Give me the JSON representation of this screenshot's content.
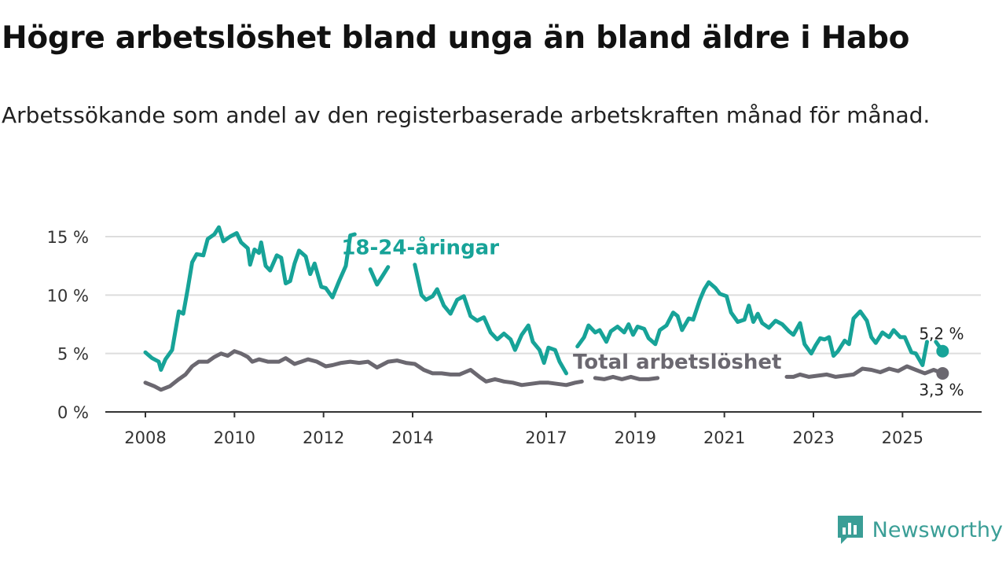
{
  "header": {
    "title": "Högre arbetslöshet bland unga än bland äldre i Habo",
    "subtitle": "Arbetssökande som andel av den registerbaserade arbetskraften månad för månad."
  },
  "brand": {
    "name": "Newsworthy",
    "icon": "bar-chart-icon",
    "color": "#3a9e96"
  },
  "chart_data": {
    "type": "line",
    "title": "Högre arbetslöshet bland unga än bland äldre i Habo",
    "xlabel": "",
    "ylabel": "",
    "xlim": [
      2008.0,
      2026.0
    ],
    "ylim": [
      0,
      16
    ],
    "grid": true,
    "x_ticks": [
      {
        "value": 2008,
        "label": "2008"
      },
      {
        "value": 2010,
        "label": "2010"
      },
      {
        "value": 2012,
        "label": "2012"
      },
      {
        "value": 2014,
        "label": "2014"
      },
      {
        "value": 2017,
        "label": "2017"
      },
      {
        "value": 2019,
        "label": "2019"
      },
      {
        "value": 2021,
        "label": "2021"
      },
      {
        "value": 2023,
        "label": "2023"
      },
      {
        "value": 2025,
        "label": "2025"
      }
    ],
    "y_ticks": [
      {
        "value": 0,
        "label": "0 %"
      },
      {
        "value": 5,
        "label": "5 %"
      },
      {
        "value": 10,
        "label": "10 %"
      },
      {
        "value": 15,
        "label": "15 %"
      }
    ],
    "series": [
      {
        "name": "18-24-åringar",
        "color": "#17a398",
        "end_label": "5,2 %",
        "points": [
          [
            2008.0,
            5.1
          ],
          [
            2008.15,
            4.6
          ],
          [
            2008.3,
            4.3
          ],
          [
            2008.35,
            3.6
          ],
          [
            2008.45,
            4.5
          ],
          [
            2008.6,
            5.3
          ],
          [
            2008.75,
            8.6
          ],
          [
            2008.85,
            8.4
          ],
          [
            2008.95,
            10.5
          ],
          [
            2009.05,
            12.8
          ],
          [
            2009.15,
            13.5
          ],
          [
            2009.3,
            13.4
          ],
          [
            2009.4,
            14.8
          ],
          [
            2009.55,
            15.2
          ],
          [
            2009.65,
            15.8
          ],
          [
            2009.75,
            14.6
          ],
          [
            2009.9,
            15.0
          ],
          [
            2010.05,
            15.3
          ],
          [
            2010.15,
            14.5
          ],
          [
            2010.3,
            14.0
          ],
          [
            2010.35,
            12.6
          ],
          [
            2010.45,
            13.9
          ],
          [
            2010.55,
            13.6
          ],
          [
            2010.6,
            14.5
          ],
          [
            2010.7,
            12.5
          ],
          [
            2010.8,
            12.1
          ],
          [
            2010.95,
            13.4
          ],
          [
            2011.05,
            13.2
          ],
          [
            2011.15,
            11.0
          ],
          [
            2011.25,
            11.2
          ],
          [
            2011.35,
            12.7
          ],
          [
            2011.45,
            13.8
          ],
          [
            2011.6,
            13.3
          ],
          [
            2011.7,
            11.8
          ],
          [
            2011.8,
            12.7
          ],
          [
            2011.95,
            10.7
          ],
          [
            2012.05,
            10.6
          ],
          [
            2012.2,
            9.8
          ],
          [
            2012.35,
            11.2
          ],
          [
            2012.5,
            12.5
          ],
          [
            2012.6,
            15.1
          ],
          [
            2012.7,
            15.2
          ]
        ]
      },
      {
        "name": "18-24-åringar (del 2)",
        "color": "#17a398",
        "points": [
          [
            2013.05,
            12.2
          ],
          [
            2013.2,
            10.9
          ],
          [
            2013.35,
            11.8
          ],
          [
            2013.45,
            12.4
          ]
        ]
      },
      {
        "name": "18-24-åringar (del 3)",
        "color": "#17a398",
        "points": [
          [
            2014.05,
            12.6
          ],
          [
            2014.2,
            10.0
          ],
          [
            2014.3,
            9.6
          ],
          [
            2014.45,
            9.9
          ],
          [
            2014.55,
            10.5
          ],
          [
            2014.7,
            9.1
          ],
          [
            2014.85,
            8.4
          ],
          [
            2015.0,
            9.6
          ],
          [
            2015.15,
            9.9
          ],
          [
            2015.3,
            8.2
          ],
          [
            2015.45,
            7.8
          ],
          [
            2015.6,
            8.1
          ],
          [
            2015.75,
            6.8
          ],
          [
            2015.9,
            6.2
          ],
          [
            2016.05,
            6.7
          ],
          [
            2016.2,
            6.2
          ],
          [
            2016.3,
            5.3
          ],
          [
            2016.45,
            6.6
          ],
          [
            2016.6,
            7.4
          ],
          [
            2016.7,
            6.0
          ],
          [
            2016.85,
            5.3
          ],
          [
            2016.95,
            4.2
          ],
          [
            2017.05,
            5.5
          ],
          [
            2017.2,
            5.3
          ],
          [
            2017.3,
            4.3
          ],
          [
            2017.45,
            3.3
          ]
        ]
      },
      {
        "name": "18-24-åringar (del 4)",
        "color": "#17a398",
        "points": [
          [
            2017.7,
            5.6
          ],
          [
            2017.85,
            6.4
          ],
          [
            2017.95,
            7.4
          ],
          [
            2018.1,
            6.8
          ],
          [
            2018.2,
            7.0
          ],
          [
            2018.35,
            6.0
          ],
          [
            2018.45,
            6.9
          ],
          [
            2018.6,
            7.3
          ],
          [
            2018.75,
            6.8
          ],
          [
            2018.85,
            7.5
          ],
          [
            2018.95,
            6.6
          ],
          [
            2019.05,
            7.3
          ],
          [
            2019.2,
            7.1
          ],
          [
            2019.3,
            6.3
          ],
          [
            2019.45,
            5.8
          ],
          [
            2019.55,
            7.0
          ],
          [
            2019.7,
            7.4
          ],
          [
            2019.85,
            8.5
          ],
          [
            2019.95,
            8.2
          ],
          [
            2020.05,
            7.0
          ],
          [
            2020.2,
            8.0
          ],
          [
            2020.3,
            7.9
          ],
          [
            2020.45,
            9.6
          ],
          [
            2020.55,
            10.5
          ],
          [
            2020.65,
            11.1
          ],
          [
            2020.8,
            10.6
          ],
          [
            2020.9,
            10.1
          ],
          [
            2021.05,
            9.9
          ],
          [
            2021.15,
            8.5
          ],
          [
            2021.3,
            7.7
          ],
          [
            2021.45,
            7.9
          ],
          [
            2021.55,
            9.1
          ],
          [
            2021.65,
            7.7
          ],
          [
            2021.75,
            8.4
          ],
          [
            2021.85,
            7.6
          ],
          [
            2022.0,
            7.2
          ],
          [
            2022.15,
            7.8
          ],
          [
            2022.3,
            7.5
          ],
          [
            2022.45,
            6.9
          ],
          [
            2022.55,
            6.6
          ],
          [
            2022.7,
            7.6
          ],
          [
            2022.8,
            5.8
          ],
          [
            2022.95,
            5.0
          ],
          [
            2023.05,
            5.7
          ],
          [
            2023.15,
            6.3
          ],
          [
            2023.25,
            6.2
          ],
          [
            2023.35,
            6.4
          ],
          [
            2023.45,
            4.8
          ],
          [
            2023.55,
            5.2
          ],
          [
            2023.7,
            6.1
          ],
          [
            2023.8,
            5.8
          ],
          [
            2023.9,
            8.0
          ],
          [
            2024.05,
            8.6
          ],
          [
            2024.2,
            7.8
          ],
          [
            2024.3,
            6.4
          ],
          [
            2024.4,
            5.9
          ],
          [
            2024.55,
            6.8
          ],
          [
            2024.7,
            6.4
          ],
          [
            2024.8,
            7.0
          ],
          [
            2024.95,
            6.4
          ],
          [
            2025.05,
            6.4
          ],
          [
            2025.2,
            5.1
          ],
          [
            2025.3,
            5.0
          ],
          [
            2025.45,
            4.0
          ],
          [
            2025.55,
            6.0
          ]
        ]
      },
      {
        "name": "18-24-åringar (del 5)",
        "color": "#17a398",
        "points": [
          [
            2025.75,
            6.0
          ],
          [
            2025.9,
            5.2
          ]
        ]
      },
      {
        "name": "Total arbetslöshet",
        "color": "#6b6870",
        "end_label": "3,3 %",
        "points": [
          [
            2008.0,
            2.5
          ],
          [
            2008.2,
            2.2
          ],
          [
            2008.35,
            1.9
          ],
          [
            2008.55,
            2.2
          ],
          [
            2008.75,
            2.8
          ],
          [
            2008.9,
            3.2
          ],
          [
            2009.05,
            3.9
          ],
          [
            2009.2,
            4.3
          ],
          [
            2009.4,
            4.3
          ],
          [
            2009.55,
            4.7
          ],
          [
            2009.7,
            5.0
          ],
          [
            2009.85,
            4.8
          ],
          [
            2010.0,
            5.2
          ],
          [
            2010.15,
            5.0
          ],
          [
            2010.3,
            4.7
          ],
          [
            2010.4,
            4.3
          ],
          [
            2010.55,
            4.5
          ],
          [
            2010.75,
            4.3
          ],
          [
            2011.0,
            4.3
          ],
          [
            2011.15,
            4.6
          ],
          [
            2011.35,
            4.1
          ],
          [
            2011.5,
            4.3
          ],
          [
            2011.65,
            4.5
          ],
          [
            2011.85,
            4.3
          ],
          [
            2012.05,
            3.9
          ],
          [
            2012.2,
            4.0
          ],
          [
            2012.4,
            4.2
          ],
          [
            2012.6,
            4.3
          ],
          [
            2012.8,
            4.2
          ],
          [
            2013.0,
            4.3
          ],
          [
            2013.2,
            3.8
          ],
          [
            2013.45,
            4.3
          ],
          [
            2013.65,
            4.4
          ],
          [
            2013.85,
            4.2
          ],
          [
            2014.05,
            4.1
          ],
          [
            2014.25,
            3.6
          ],
          [
            2014.45,
            3.3
          ],
          [
            2014.65,
            3.3
          ],
          [
            2014.85,
            3.2
          ],
          [
            2015.05,
            3.2
          ],
          [
            2015.3,
            3.6
          ],
          [
            2015.5,
            3.0
          ],
          [
            2015.65,
            2.6
          ],
          [
            2015.85,
            2.8
          ],
          [
            2016.05,
            2.6
          ],
          [
            2016.25,
            2.5
          ],
          [
            2016.45,
            2.3
          ],
          [
            2016.65,
            2.4
          ],
          [
            2016.85,
            2.5
          ],
          [
            2017.05,
            2.5
          ],
          [
            2017.25,
            2.4
          ],
          [
            2017.45,
            2.3
          ],
          [
            2017.65,
            2.5
          ],
          [
            2017.8,
            2.6
          ]
        ]
      },
      {
        "name": "Total arbetslöshet (del 2)",
        "color": "#6b6870",
        "points": [
          [
            2018.1,
            2.9
          ],
          [
            2018.3,
            2.8
          ],
          [
            2018.5,
            3.0
          ],
          [
            2018.7,
            2.8
          ],
          [
            2018.9,
            3.0
          ],
          [
            2019.1,
            2.8
          ],
          [
            2019.3,
            2.8
          ],
          [
            2019.5,
            2.9
          ]
        ]
      },
      {
        "name": "Total arbetslöshet (del 3)",
        "color": "#6b6870",
        "points": [
          [
            2022.4,
            3.0
          ],
          [
            2022.55,
            3.0
          ],
          [
            2022.7,
            3.2
          ],
          [
            2022.9,
            3.0
          ],
          [
            2023.1,
            3.1
          ],
          [
            2023.3,
            3.2
          ],
          [
            2023.5,
            3.0
          ],
          [
            2023.7,
            3.1
          ],
          [
            2023.9,
            3.2
          ],
          [
            2024.1,
            3.7
          ],
          [
            2024.3,
            3.6
          ],
          [
            2024.5,
            3.4
          ],
          [
            2024.7,
            3.7
          ],
          [
            2024.9,
            3.5
          ],
          [
            2025.1,
            3.9
          ],
          [
            2025.3,
            3.6
          ],
          [
            2025.5,
            3.3
          ],
          [
            2025.7,
            3.6
          ],
          [
            2025.9,
            3.3
          ]
        ]
      }
    ],
    "annotations": [
      {
        "text": "18-24-åringar",
        "x": 2012.4,
        "y": 13.5,
        "series": "18-24-åringar"
      },
      {
        "text": "Total arbetslöshet",
        "x": 2017.6,
        "y": 3.7,
        "series": "Total arbetslöshet"
      }
    ]
  }
}
